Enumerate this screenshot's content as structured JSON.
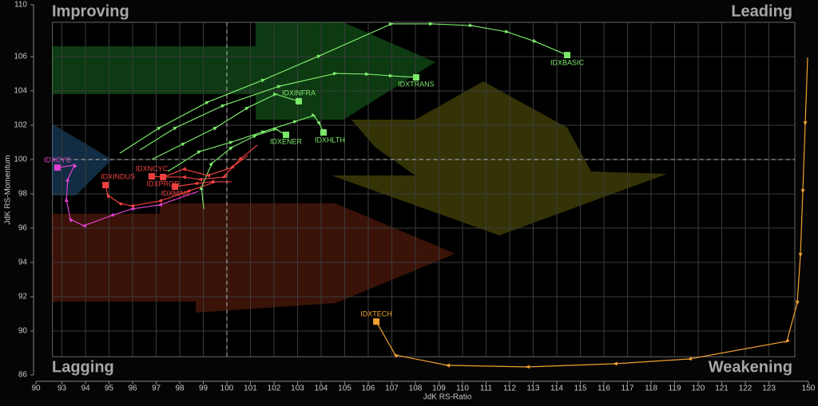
{
  "chart_data": {
    "type": "rrg",
    "x_label": "JdK RS-Ratio",
    "y_label": "JdK RS-Momentum",
    "quadrants": [
      "Improving",
      "Leading",
      "Lagging",
      "Weakening"
    ],
    "xlim": [
      90,
      150
    ],
    "x_shown": [
      92.6,
      124.1
    ],
    "ylim": [
      86,
      110
    ],
    "y_shown": [
      88.5,
      108
    ],
    "xticks": [
      90,
      93,
      94,
      95,
      96,
      97,
      98,
      99,
      100,
      101,
      102,
      103,
      104,
      105,
      106,
      107,
      108,
      109,
      110,
      111,
      112,
      113,
      114,
      115,
      116,
      117,
      118,
      119,
      120,
      121,
      122,
      123,
      150
    ],
    "yticks": [
      86,
      90,
      92,
      94,
      96,
      98,
      100,
      102,
      104,
      106,
      110
    ],
    "center": [
      100,
      100
    ],
    "grid": true,
    "series": [
      {
        "name": "IDXBASIC",
        "color": "#7be86a",
        "x": [
          95.46,
          97.15,
          99.19,
          101.56,
          103.93,
          106.98,
          108.68,
          110.37,
          111.9,
          113.08,
          114.44
        ],
        "y": [
          100.37,
          101.86,
          103.35,
          104.65,
          106.05,
          107.91,
          107.91,
          107.81,
          107.44,
          106.88,
          106.09
        ]
      },
      {
        "name": "IDXTRANS",
        "color": "#7be86a",
        "x": [
          96.31,
          97.83,
          99.86,
          102.24,
          104.61,
          105.97,
          106.98,
          108.03
        ],
        "y": [
          100.56,
          101.86,
          103.16,
          104.28,
          105.02,
          104.98,
          104.88,
          104.79
        ]
      },
      {
        "name": "IDXINFRA",
        "color": "#7be86a",
        "x": [
          96.81,
          98.17,
          99.53,
          100.88,
          102.07,
          103.05
        ],
        "y": [
          100.0,
          100.93,
          101.86,
          103.02,
          103.81,
          103.4
        ]
      },
      {
        "name": "IDXHLTH",
        "color": "#7be86a",
        "x": [
          97.49,
          98.85,
          100.2,
          101.56,
          102.92,
          103.69,
          103.93,
          104.1
        ],
        "y": [
          99.3,
          100.47,
          101.02,
          101.63,
          102.23,
          102.56,
          102.09,
          101.58
        ]
      },
      {
        "name": "IDXENER",
        "color": "#7be86a",
        "x": [
          99.02,
          98.92,
          99.36,
          100.2,
          101.22,
          102.07,
          102.51
        ],
        "y": [
          97.12,
          98.37,
          99.77,
          100.7,
          101.4,
          101.77,
          101.44
        ]
      },
      {
        "name": "IDXCYC",
        "color": "#e040d0",
        "x": [
          98.78,
          97.15,
          95.97,
          95.12,
          93.93,
          93.36,
          93.19,
          93.25,
          93.53,
          92.81
        ],
        "y": [
          98.14,
          97.35,
          97.12,
          96.74,
          96.14,
          96.51,
          97.67,
          98.84,
          99.67,
          99.53
        ]
      },
      {
        "name": "IDXINDUS",
        "color": "#f04040",
        "x": [
          99.53,
          98.34,
          97.15,
          95.97,
          95.46,
          94.95,
          94.85
        ],
        "y": [
          98.7,
          98.14,
          97.58,
          97.3,
          97.44,
          97.91,
          98.51
        ]
      },
      {
        "name": "IDXNCYC",
        "color": "#f04040",
        "x": [
          100.88,
          100.2,
          99.19,
          98.17,
          97.32,
          96.81
        ],
        "y": [
          100.23,
          99.53,
          99.07,
          99.44,
          98.98,
          99.02
        ]
      },
      {
        "name": "IDXPROD",
        "color": "#f04040",
        "x": [
          101.29,
          100.54,
          99.86,
          98.85,
          98.17,
          97.29
        ],
        "y": [
          100.84,
          100.0,
          98.98,
          98.84,
          98.98,
          98.98
        ]
      },
      {
        "name": "IDXMAN",
        "color": "#f04040",
        "x": [
          100.2,
          99.36,
          98.68,
          97.8
        ],
        "y": [
          98.7,
          98.7,
          98.6,
          98.42
        ]
      },
      {
        "name": "IDXTECH",
        "color": "#f0a030",
        "x": [
          148.48,
          143.91,
          139.34,
          134.77,
          128.67,
          123.76,
          119.63,
          116.47,
          112.75,
          109.36,
          107.15,
          106.34
        ],
        "y": [
          105.95,
          102.09,
          98.14,
          94.42,
          91.63,
          89.4,
          88.2,
          87.54,
          87.1,
          87.32,
          88.6,
          90.55
        ]
      }
    ]
  }
}
